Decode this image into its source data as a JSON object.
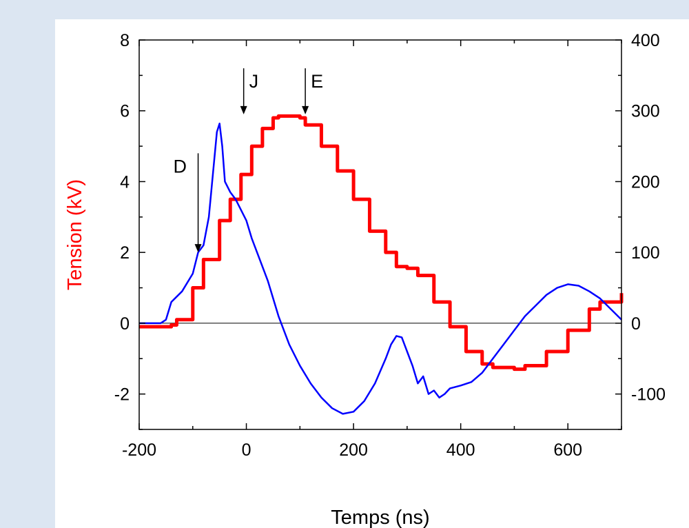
{
  "chart_data": {
    "type": "line",
    "xlabel": "Temps (ns)",
    "ylabel": "Tension (kV)",
    "xlim": [
      -200,
      700
    ],
    "ylim": [
      -3,
      8
    ],
    "y2lim": [
      -150,
      400
    ],
    "x_ticks": [
      -200,
      0,
      200,
      400,
      600
    ],
    "y_ticks": [
      -2,
      0,
      2,
      4,
      6,
      8
    ],
    "y2_ticks": [
      -100,
      0,
      100,
      200,
      300,
      400
    ],
    "colors": {
      "tension": "#ff0000",
      "second": "#0000ff",
      "zero_line": "#000000"
    },
    "series": [
      {
        "axis": "left",
        "color": "#ff0000",
        "x": [
          -200,
          -140,
          -130,
          -100,
          -80,
          -50,
          -30,
          -10,
          10,
          30,
          50,
          60,
          80,
          100,
          110,
          140,
          170,
          200,
          230,
          260,
          280,
          300,
          320,
          350,
          380,
          410,
          440,
          460,
          480,
          500,
          520,
          560,
          600,
          640,
          660,
          700
        ],
        "y": [
          -0.1,
          -0.05,
          0.1,
          1.0,
          1.8,
          2.9,
          3.5,
          4.2,
          5.0,
          5.5,
          5.8,
          5.85,
          5.85,
          5.8,
          5.6,
          5.0,
          4.3,
          3.5,
          2.6,
          2.0,
          1.6,
          1.55,
          1.35,
          0.6,
          -0.1,
          -0.8,
          -1.15,
          -1.25,
          -1.25,
          -1.3,
          -1.2,
          -0.8,
          -0.2,
          0.4,
          0.6,
          0.85
        ]
      },
      {
        "axis": "right",
        "color": "#0000ff",
        "x": [
          -200,
          -160,
          -150,
          -140,
          -120,
          -100,
          -90,
          -80,
          -70,
          -60,
          -55,
          -50,
          -45,
          -40,
          -30,
          -20,
          -10,
          0,
          10,
          20,
          40,
          60,
          80,
          100,
          120,
          140,
          160,
          180,
          200,
          220,
          240,
          260,
          270,
          280,
          290,
          300,
          310,
          320,
          330,
          340,
          350,
          360,
          370,
          380,
          400,
          420,
          440,
          460,
          480,
          500,
          520,
          540,
          560,
          580,
          600,
          620,
          640,
          660,
          680,
          700
        ],
        "y": [
          0,
          0,
          5,
          30,
          45,
          70,
          100,
          110,
          150,
          230,
          270,
          282,
          250,
          200,
          185,
          175,
          160,
          145,
          120,
          100,
          60,
          10,
          -30,
          -60,
          -85,
          -105,
          -120,
          -128,
          -125,
          -110,
          -85,
          -50,
          -30,
          -18,
          -20,
          -40,
          -60,
          -85,
          -75,
          -100,
          -95,
          -105,
          -100,
          -92,
          -88,
          -83,
          -70,
          -50,
          -30,
          -10,
          10,
          25,
          40,
          50,
          55,
          53,
          45,
          35,
          20,
          5
        ]
      }
    ],
    "annotations": [
      {
        "label": "D",
        "x": -90,
        "y_start": 4.8,
        "y_end": 2.0
      },
      {
        "label": "J",
        "x": -5,
        "y_start": 7.2,
        "y_end": 5.9
      },
      {
        "label": "E",
        "x": 110,
        "y_start": 7.2,
        "y_end": 5.9
      }
    ]
  }
}
